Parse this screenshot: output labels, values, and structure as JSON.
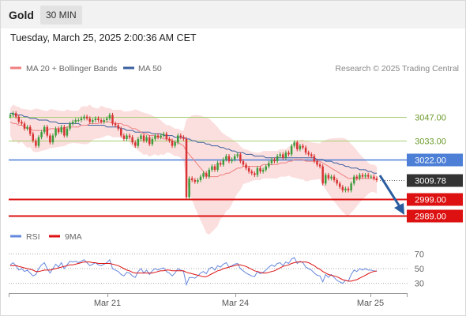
{
  "header": {
    "instrument": "Gold",
    "timeframe": "30 MIN",
    "datetime": "Tuesday, March 25, 2025 2:00:36 AM CET"
  },
  "legend": {
    "ma20_label": "MA 20 + Bollinger Bands",
    "ma50_label": "MA 50",
    "copyright": "Research © 2025 Trading Central",
    "rsi_label": "RSI",
    "rsi_ma_label": "9MA"
  },
  "colors": {
    "bullish": "#3c9c3c",
    "bearish": "#d83232",
    "bollinger_fill": "#fbdede",
    "ma20": "#f08080",
    "ma50": "#3a5f9f",
    "resistance": "#a8cf72",
    "pivot": "#4d7fd6",
    "support": "#dd1111",
    "current": "#333333",
    "arrow": "#2a5d9f",
    "rsi": "#6688dd",
    "rsi_ma": "#dd1111"
  },
  "chart_data": [
    {
      "type": "candlestick",
      "title": "Gold 30 MIN",
      "x_tick_labels": [
        "Mar 21",
        "Mar 24",
        "Mar 25"
      ],
      "ylim": [
        2986,
        3063
      ],
      "grid": false,
      "legend_position": "top-left",
      "levels": [
        {
          "name": "resistance-2",
          "value": 3047.0,
          "label": "3047.00",
          "style": "resistance"
        },
        {
          "name": "resistance-1",
          "value": 3033.0,
          "label": "3033.00",
          "style": "resistance"
        },
        {
          "name": "pivot",
          "value": 3022.0,
          "label": "3022.00",
          "style": "pivot"
        },
        {
          "name": "current-price",
          "value": 3009.78,
          "label": "3009.78",
          "style": "current"
        },
        {
          "name": "support-1",
          "value": 2999.0,
          "label": "2999.00",
          "style": "support"
        },
        {
          "name": "support-2",
          "value": 2989.0,
          "label": "2989.00",
          "style": "support"
        }
      ],
      "close": [
        3048,
        3049,
        3047,
        3044,
        3043,
        3040,
        3041,
        3037,
        3033,
        3030,
        3035,
        3038,
        3041,
        3036,
        3032,
        3036,
        3040,
        3038,
        3041,
        3036,
        3040,
        3043,
        3044,
        3045,
        3045,
        3046,
        3047,
        3046,
        3044,
        3045,
        3046,
        3045,
        3044,
        3045,
        3046,
        3048,
        3043,
        3042,
        3040,
        3036,
        3034,
        3036,
        3035,
        3032,
        3030,
        3034,
        3036,
        3033,
        3035,
        3031,
        3034,
        3036,
        3035,
        3036,
        3037,
        3034,
        3033,
        3030,
        3032,
        3036,
        3035,
        3034,
        3000,
        3011,
        3010,
        3009,
        3010,
        3012,
        3014,
        3012,
        3016,
        3018,
        3016,
        3020,
        3019,
        3022,
        3024,
        3021,
        3022,
        3024,
        3025,
        3021,
        3019,
        3017,
        3015,
        3014,
        3013,
        3017,
        3015,
        3016,
        3018,
        3020,
        3022,
        3021,
        3024,
        3025,
        3023,
        3026,
        3025,
        3030,
        3032,
        3028,
        3030,
        3029,
        3026,
        3025,
        3024,
        3021,
        3019,
        3018,
        3008,
        3013,
        3011,
        3012,
        3010,
        3008,
        3006,
        3004,
        3005,
        3004,
        3008,
        3012,
        3011,
        3013,
        3012,
        3013,
        3012,
        3012,
        3011,
        3010
      ],
      "ma20": [
        3044,
        3043,
        3043,
        3042,
        3042,
        3041,
        3040,
        3040,
        3039,
        3039,
        3039,
        3039,
        3039,
        3039,
        3040,
        3040,
        3040,
        3040,
        3040,
        3040,
        3041,
        3041,
        3041,
        3041,
        3041,
        3042,
        3042,
        3042,
        3043,
        3043,
        3043,
        3043,
        3044,
        3044,
        3044,
        3044,
        3043,
        3043,
        3043,
        3043,
        3042,
        3042,
        3041,
        3040,
        3040,
        3039,
        3038,
        3037,
        3037,
        3036,
        3036,
        3036,
        3035,
        3035,
        3034,
        3034,
        3034,
        3033,
        3032,
        3032,
        3031,
        3030,
        3027,
        3025,
        3023,
        3021,
        3019,
        3017,
        3015,
        3013,
        3012,
        3012,
        3012,
        3012,
        3013,
        3013,
        3014,
        3014,
        3015,
        3016,
        3017,
        3017,
        3018,
        3018,
        3018,
        3018,
        3018,
        3018,
        3018,
        3019,
        3019,
        3019,
        3019,
        3019,
        3019,
        3020,
        3020,
        3020,
        3021,
        3021,
        3022,
        3022,
        3022,
        3022,
        3021,
        3021,
        3021,
        3021,
        3021,
        3021,
        3020,
        3019,
        3018,
        3017,
        3016,
        3015,
        3014,
        3013,
        3012,
        3011,
        3011,
        3011,
        3011,
        3011,
        3011,
        3011,
        3011,
        3011,
        3011,
        3010
      ],
      "ma50": [
        3049,
        3049,
        3048,
        3048,
        3048,
        3047,
        3047,
        3046,
        3046,
        3046,
        3045,
        3045,
        3045,
        3045,
        3044,
        3044,
        3044,
        3043,
        3043,
        3043,
        3043,
        3043,
        3043,
        3043,
        3043,
        3042,
        3042,
        3042,
        3042,
        3042,
        3042,
        3042,
        3042,
        3042,
        3041,
        3041,
        3041,
        3041,
        3041,
        3040,
        3040,
        3039,
        3039,
        3039,
        3038,
        3038,
        3038,
        3038,
        3038,
        3038,
        3037,
        3037,
        3037,
        3037,
        3036,
        3036,
        3036,
        3036,
        3035,
        3035,
        3035,
        3035,
        3034,
        3034,
        3033,
        3033,
        3032,
        3032,
        3032,
        3031,
        3031,
        3030,
        3030,
        3030,
        3029,
        3029,
        3028,
        3028,
        3027,
        3027,
        3026,
        3026,
        3026,
        3025,
        3025,
        3025,
        3024,
        3024,
        3024,
        3024,
        3023,
        3023,
        3023,
        3023,
        3023,
        3023,
        3023,
        3023,
        3023,
        3023,
        3023,
        3023,
        3023,
        3023,
        3023,
        3023,
        3023,
        3023,
        3022,
        3022,
        3022,
        3021,
        3021,
        3021,
        3020,
        3020,
        3019,
        3019,
        3018,
        3018,
        3017,
        3017,
        3017,
        3016,
        3016,
        3016,
        3015,
        3015,
        3014,
        3014
      ]
    },
    {
      "type": "line",
      "title": "RSI",
      "ylim": [
        20,
        80
      ],
      "y_ticks": [
        70,
        50,
        30
      ],
      "rsi": [
        55,
        58,
        54,
        48,
        50,
        46,
        48,
        44,
        40,
        42,
        50,
        55,
        58,
        50,
        44,
        50,
        56,
        52,
        58,
        50,
        55,
        60,
        59,
        60,
        58,
        60,
        62,
        58,
        54,
        56,
        58,
        55,
        54,
        56,
        58,
        62,
        50,
        48,
        46,
        42,
        40,
        45,
        44,
        40,
        38,
        46,
        50,
        44,
        48,
        42,
        47,
        50,
        48,
        50,
        51,
        46,
        44,
        40,
        44,
        50,
        48,
        46,
        28,
        38,
        38,
        37,
        40,
        44,
        46,
        43,
        50,
        52,
        48,
        54,
        52,
        56,
        58,
        52,
        54,
        56,
        57,
        50,
        47,
        44,
        42,
        40,
        39,
        46,
        43,
        45,
        48,
        52,
        55,
        53,
        57,
        58,
        54,
        59,
        57,
        63,
        65,
        57,
        60,
        58,
        52,
        50,
        48,
        44,
        41,
        40,
        32,
        42,
        38,
        42,
        38,
        34,
        32,
        30,
        34,
        33,
        42,
        48,
        46,
        50,
        48,
        50,
        48,
        48,
        47,
        46
      ],
      "ma9": [
        54,
        54,
        54,
        53,
        52,
        51,
        50,
        49,
        48,
        46,
        46,
        47,
        48,
        48,
        48,
        49,
        50,
        51,
        52,
        53,
        54,
        55,
        55,
        56,
        57,
        58,
        59,
        59,
        59,
        58,
        58,
        57,
        57,
        57,
        57,
        57,
        56,
        55,
        54,
        52,
        50,
        48,
        47,
        45,
        44,
        44,
        44,
        44,
        44,
        44,
        44,
        45,
        46,
        47,
        47,
        48,
        48,
        47,
        47,
        47,
        47,
        47,
        45,
        44,
        43,
        42,
        41,
        40,
        39,
        39,
        41,
        43,
        45,
        47,
        48,
        50,
        51,
        52,
        53,
        54,
        55,
        55,
        54,
        53,
        51,
        49,
        47,
        46,
        45,
        44,
        44,
        45,
        46,
        47,
        49,
        51,
        53,
        54,
        55,
        57,
        58,
        59,
        59,
        59,
        59,
        58,
        56,
        54,
        51,
        49,
        46,
        44,
        42,
        41,
        40,
        39,
        37,
        35,
        34,
        33,
        33,
        34,
        35,
        37,
        39,
        41,
        43,
        45,
        46,
        47
      ]
    }
  ]
}
